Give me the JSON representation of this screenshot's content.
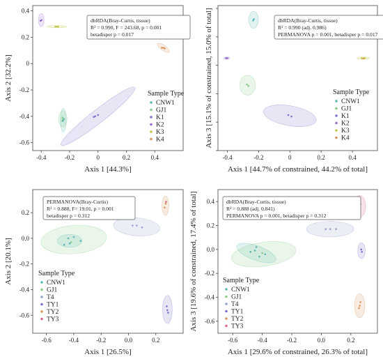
{
  "chart_data": [
    {
      "type": "scatter",
      "xlabel": "Axis 1 [44.3%]",
      "ylabel": "Axis 2  [32.2%]",
      "xlim": [
        -0.46,
        0.6
      ],
      "ylim": [
        -0.66,
        0.44
      ],
      "xticks": [
        -0.4,
        -0.2,
        0.0,
        0.2,
        0.4
      ],
      "xtick_labels": [
        "-0.4",
        "-0.2",
        "0",
        "0.2",
        "0.4"
      ],
      "yticks": [
        -0.6,
        -0.4,
        -0.2,
        0.0,
        0.2,
        0.4
      ],
      "ytick_labels": [
        "-0.6",
        "-0.4",
        "-0.2",
        "0",
        "0.2",
        "0.4"
      ],
      "annotation_lines": [
        "dbRDA(Bray-Curtis, tissue)",
        "R² = 0.990, F = 243.68, p = 0.001",
        "betadisper p = 0.017"
      ],
      "legend": {
        "title": "Sample Type",
        "placement": "lower-right"
      },
      "series": [
        {
          "name": "CNW1",
          "color": "#5ab8b0",
          "points": [
            [
              -0.245,
              -0.43
            ],
            [
              -0.24,
              -0.42
            ],
            [
              -0.25,
              -0.435
            ]
          ],
          "ellipse": {
            "cx": -0.245,
            "cy": -0.43,
            "rx": 0.02,
            "ry": 0.09,
            "angle": 0
          }
        },
        {
          "name": "GJ1",
          "color": "#8ccc8a",
          "points": [
            [
              -0.25,
              -0.41
            ],
            [
              -0.248,
              -0.425
            ]
          ],
          "ellipse": {
            "cx": -0.248,
            "cy": -0.42,
            "rx": 0.03,
            "ry": 0.06,
            "angle": 0
          }
        },
        {
          "name": "K1",
          "color": "#7b73c8",
          "points": [
            [
              -0.03,
              -0.405
            ],
            [
              0.0,
              -0.39
            ],
            [
              -0.02,
              -0.4
            ]
          ],
          "ellipse": {
            "cx": 0.0,
            "cy": -0.4,
            "rx": 0.33,
            "ry": 0.05,
            "angle": 38
          }
        },
        {
          "name": "K2",
          "color": "#9a6fd0",
          "points": [
            [
              -0.405,
              0.325
            ],
            [
              -0.398,
              0.33
            ]
          ],
          "ellipse": {
            "cx": -0.4,
            "cy": 0.33,
            "rx": 0.02,
            "ry": 0.05,
            "angle": 0
          }
        },
        {
          "name": "K3",
          "color": "#c2c84a",
          "points": [
            [
              -0.3,
              0.28
            ],
            [
              -0.29,
              0.28
            ],
            [
              -0.28,
              0.28
            ]
          ],
          "ellipse": {
            "cx": -0.29,
            "cy": 0.28,
            "rx": 0.07,
            "ry": 0.008,
            "angle": 0
          }
        },
        {
          "name": "K4",
          "color": "#d8955f",
          "points": [
            [
              0.45,
              0.12
            ],
            [
              0.46,
              0.12
            ],
            [
              0.47,
              0.115
            ]
          ],
          "ellipse": {
            "cx": 0.46,
            "cy": 0.12,
            "rx": 0.05,
            "ry": 0.02,
            "angle": -35
          }
        }
      ]
    },
    {
      "type": "scatter",
      "xlabel": "Axis 1 [44.7% of constrained, 44.2% of total]",
      "ylabel": "Axis 3 [15.1% of constrained, 15.0% of total]",
      "xlim": [
        -0.46,
        0.56
      ],
      "ylim": [
        -0.6,
        0.42
      ],
      "xticks": [
        -0.4,
        -0.2,
        0.0,
        0.2,
        0.4
      ],
      "xtick_labels": [
        "-0.4",
        "-0.2",
        "0",
        "0.2",
        "0.4"
      ],
      "yticks": [
        -0.6,
        -0.4,
        -0.2,
        0.0,
        0.2,
        0.4
      ],
      "ytick_labels": [],
      "annotation_lines": [
        "dbRDA(Bray-Curtis, tissue)",
        "R² = 0.990 (adj. 0.986)",
        "PERMANOVA p = 0.001, betadisper p = 0.017"
      ],
      "legend": {
        "title": "Sample Type",
        "placement": "lower-right"
      },
      "series": [
        {
          "name": "CNW1",
          "color": "#5ab8b0",
          "points": [
            [
              -0.235,
              0.315
            ],
            [
              -0.23,
              0.325
            ]
          ],
          "ellipse": {
            "cx": -0.232,
            "cy": 0.32,
            "rx": 0.03,
            "ry": 0.06,
            "angle": 0
          }
        },
        {
          "name": "GJ1",
          "color": "#8ccc8a",
          "points": [
            [
              -0.275,
              -0.135
            ],
            [
              -0.265,
              -0.145
            ]
          ],
          "ellipse": {
            "cx": -0.27,
            "cy": -0.14,
            "rx": 0.05,
            "ry": 0.07,
            "angle": 0
          }
        },
        {
          "name": "K1",
          "color": "#7b73c8",
          "points": [
            [
              -0.01,
              -0.35
            ],
            [
              0.01,
              -0.36
            ]
          ],
          "ellipse": {
            "cx": 0.0,
            "cy": -0.355,
            "rx": 0.17,
            "ry": 0.07,
            "angle": -10
          }
        },
        {
          "name": "K2",
          "color": "#9a6fd0",
          "points": [
            [
              -0.408,
              0.05
            ],
            [
              -0.4,
              0.05
            ]
          ],
          "ellipse": {
            "cx": -0.404,
            "cy": 0.05,
            "rx": 0.02,
            "ry": 0.008,
            "angle": 0
          }
        },
        {
          "name": "K3",
          "color": "#c2c84a",
          "points": [
            [
              0.46,
              0.05
            ],
            [
              0.48,
              0.05
            ]
          ],
          "ellipse": {
            "cx": 0.47,
            "cy": 0.05,
            "rx": 0.04,
            "ry": 0.008,
            "angle": 0
          }
        },
        {
          "name": "K4",
          "color": "#d8955f",
          "points": [
            [
              0.47,
              0.048
            ]
          ],
          "ellipse": null
        }
      ]
    },
    {
      "type": "scatter",
      "xlabel": "Axis 1 [26.5%]",
      "ylabel": "Axis 2  [20.1%]",
      "xlim": [
        -0.7,
        0.4
      ],
      "ylim": [
        -0.74,
        0.38
      ],
      "xticks": [
        -0.6,
        -0.4,
        -0.2,
        0.0,
        0.2
      ],
      "xtick_labels": [
        "-0.6",
        "-0.4",
        "-0.2",
        "0.0",
        "0.2"
      ],
      "yticks": [
        -0.6,
        -0.4,
        -0.2,
        0.0,
        0.2
      ],
      "ytick_labels": [
        "-0.6",
        "-0.4",
        "-0.2",
        "0.0",
        "0.2"
      ],
      "annotation_lines": [
        "PERMANOVA(Bray-Curtis)",
        "R² = 0.888, F= 19.01, p = 0.001",
        "betadisper p = 0.312"
      ],
      "legend": {
        "title": "Sample Type",
        "placement": "lower-left"
      },
      "series": [
        {
          "name": "CNW1",
          "color": "#5ab8b0",
          "points": [
            [
              -0.47,
              -0.05
            ],
            [
              -0.43,
              -0.04
            ],
            [
              -0.44,
              0.0
            ],
            [
              -0.4,
              0.01
            ],
            [
              -0.35,
              -0.02
            ]
          ],
          "ellipse": {
            "cx": -0.43,
            "cy": -0.02,
            "rx": 0.09,
            "ry": 0.05,
            "angle": 0
          }
        },
        {
          "name": "GJ1",
          "color": "#8ccc8a",
          "points": [
            [
              -0.42,
              -0.03
            ]
          ],
          "ellipse": {
            "cx": -0.4,
            "cy": -0.01,
            "rx": 0.24,
            "ry": 0.11,
            "angle": 5
          }
        },
        {
          "name": "T4",
          "color": "#95a0c8",
          "points": [
            [
              0.03,
              0.1
            ],
            [
              0.06,
              0.1
            ],
            [
              0.1,
              0.085
            ]
          ],
          "ellipse": {
            "cx": 0.06,
            "cy": 0.09,
            "rx": 0.17,
            "ry": 0.07,
            "angle": -5
          }
        },
        {
          "name": "TY1",
          "color": "#7b73c8",
          "points": [
            [
              0.28,
              -0.53
            ],
            [
              0.285,
              -0.56
            ],
            [
              0.29,
              -0.58
            ]
          ],
          "ellipse": {
            "cx": 0.285,
            "cy": -0.555,
            "rx": 0.035,
            "ry": 0.11,
            "angle": 0
          }
        },
        {
          "name": "TY2",
          "color": "#d8955f",
          "points": [
            [
              0.265,
              0.24
            ],
            [
              0.272,
              0.27
            ]
          ],
          "ellipse": {
            "cx": 0.27,
            "cy": 0.255,
            "rx": 0.025,
            "ry": 0.075,
            "angle": 0
          }
        },
        {
          "name": "TY3",
          "color": "#d46b8e",
          "points": [
            [
              0.275,
              0.285
            ]
          ],
          "ellipse": null
        }
      ]
    },
    {
      "type": "scatter",
      "xlabel": "Axis 1 [29.6% of constrained, 26.3% of total]",
      "ylabel": "Axis 3 [19.6% of constrained, 17.4% of total]",
      "xlim": [
        -0.7,
        0.38
      ],
      "ylim": [
        -0.7,
        0.5
      ],
      "xticks": [
        -0.6,
        -0.4,
        -0.2,
        0.0,
        0.2
      ],
      "xtick_labels": [
        "-0.6",
        "-0.4",
        "-0.2",
        "0.0",
        "0.2"
      ],
      "yticks": [
        -0.6,
        -0.4,
        -0.2,
        0.0,
        0.2,
        0.4
      ],
      "ytick_labels": [
        "-0.6",
        "-0.4",
        "-0.2",
        "0.0",
        "0.2",
        "0.4"
      ],
      "annotation_lines": [
        "dbRDA(Bray-Curtis, tissue)",
        "R² = 0.888 (adj. 0.841)",
        "PERMANOVA p = 0.001, betadisper p = 0.312"
      ],
      "legend": {
        "title": "Sample Type",
        "placement": "lower-left"
      },
      "series": [
        {
          "name": "CNW1",
          "color": "#5ab8b0",
          "points": [
            [
              -0.48,
              -0.02
            ],
            [
              -0.45,
              -0.01
            ],
            [
              -0.44,
              0.02
            ],
            [
              -0.42,
              -0.06
            ],
            [
              -0.38,
              -0.04
            ]
          ],
          "ellipse": {
            "cx": -0.44,
            "cy": -0.03,
            "rx": 0.14,
            "ry": 0.06,
            "angle": -20
          }
        },
        {
          "name": "GJ1",
          "color": "#8ccc8a",
          "points": [
            [
              -0.4,
              -0.03
            ]
          ],
          "ellipse": {
            "cx": -0.39,
            "cy": -0.04,
            "rx": 0.22,
            "ry": 0.1,
            "angle": 8
          }
        },
        {
          "name": "T4",
          "color": "#95a0c8",
          "points": [
            [
              0.03,
              0.17
            ],
            [
              0.06,
              0.17
            ],
            [
              0.1,
              0.17
            ]
          ],
          "ellipse": {
            "cx": 0.06,
            "cy": 0.17,
            "rx": 0.16,
            "ry": 0.065,
            "angle": 0
          }
        },
        {
          "name": "TY1",
          "color": "#7b73c8",
          "points": [
            [
              0.27,
              0.0
            ],
            [
              0.275,
              -0.02
            ]
          ],
          "ellipse": {
            "cx": 0.272,
            "cy": -0.01,
            "rx": 0.025,
            "ry": 0.065,
            "angle": 0
          }
        },
        {
          "name": "TY2",
          "color": "#d8955f",
          "points": [
            [
              0.255,
              -0.49
            ],
            [
              0.265,
              -0.44
            ],
            [
              0.26,
              -0.47
            ]
          ],
          "ellipse": {
            "cx": 0.26,
            "cy": -0.47,
            "rx": 0.035,
            "ry": 0.1,
            "angle": 0
          }
        },
        {
          "name": "TY3",
          "color": "#d46b8e",
          "points": [
            [
              0.255,
              0.35
            ],
            [
              0.265,
              0.38
            ],
            [
              0.26,
              0.36
            ]
          ],
          "ellipse": {
            "cx": 0.26,
            "cy": 0.36,
            "rx": 0.04,
            "ry": 0.09,
            "angle": 0
          }
        }
      ]
    }
  ]
}
